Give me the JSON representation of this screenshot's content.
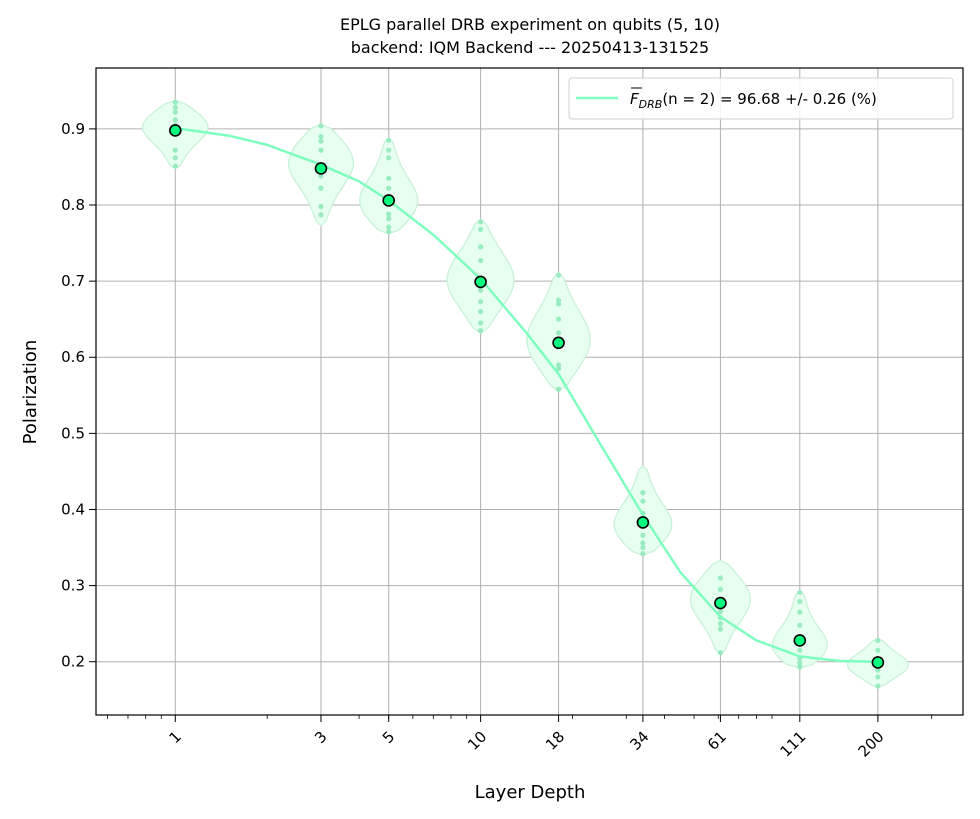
{
  "chart_data": {
    "type": "scatter",
    "title": "EPLG parallel DRB experiment on qubits (5, 10)",
    "subtitle": "backend: IQM Backend --- 20250413-131525",
    "xlabel": "Layer Depth",
    "ylabel": "Polarization",
    "x_scale": "log",
    "xlim": [
      0.55,
      380
    ],
    "ylim": [
      0.13,
      0.98
    ],
    "x_ticks": [
      1,
      3,
      5,
      10,
      18,
      34,
      61,
      111,
      200
    ],
    "x_tick_labels": [
      "1",
      "3",
      "5",
      "10",
      "18",
      "34",
      "61",
      "111",
      "200"
    ],
    "y_ticks": [
      0.2,
      0.3,
      0.4,
      0.5,
      0.6,
      0.7,
      0.8,
      0.9
    ],
    "y_tick_labels": [
      "0.2",
      "0.3",
      "0.4",
      "0.5",
      "0.6",
      "0.7",
      "0.8",
      "0.9"
    ],
    "grid": true,
    "legend_position": "top-right",
    "legend_label_prefix": "F",
    "legend_label_sub": "DRB",
    "legend_label_arg": "(n = 2) = 96.68 +/- 0.26 (%)",
    "colors": {
      "fit_line": "#7fffbf",
      "violin_fill": "#e6fff0",
      "violin_edge": "#c9f2d9",
      "samples": "#8de8b8",
      "mean_fill": "#00ff7f",
      "mean_edge": "#000000",
      "grid": "#b0b0b0"
    },
    "series": [
      {
        "name": "mean",
        "x": [
          1,
          3,
          5,
          10,
          18,
          34,
          61,
          111,
          200
        ],
        "y": [
          0.898,
          0.848,
          0.806,
          0.699,
          0.619,
          0.383,
          0.277,
          0.228,
          0.199
        ]
      },
      {
        "name": "fit",
        "x": [
          1,
          1.5,
          2,
          3,
          4,
          5,
          7,
          10,
          14,
          18,
          25,
          34,
          45,
          61,
          80,
          111,
          150,
          200
        ],
        "y": [
          0.901,
          0.891,
          0.879,
          0.853,
          0.831,
          0.806,
          0.761,
          0.703,
          0.634,
          0.578,
          0.482,
          0.393,
          0.318,
          0.259,
          0.228,
          0.207,
          0.201,
          0.2
        ]
      }
    ],
    "violins": [
      {
        "x": 1,
        "min": 0.848,
        "max": 0.937,
        "peak": 0.905,
        "width": 0.22
      },
      {
        "x": 3,
        "min": 0.773,
        "max": 0.906,
        "peak": 0.86,
        "width": 0.22
      },
      {
        "x": 5,
        "min": 0.762,
        "max": 0.888,
        "peak": 0.8,
        "width": 0.2
      },
      {
        "x": 10,
        "min": 0.632,
        "max": 0.781,
        "peak": 0.7,
        "width": 0.22
      },
      {
        "x": 18,
        "min": 0.556,
        "max": 0.711,
        "peak": 0.62,
        "width": 0.21
      },
      {
        "x": 34,
        "min": 0.34,
        "max": 0.457,
        "peak": 0.375,
        "width": 0.2
      },
      {
        "x": 61,
        "min": 0.21,
        "max": 0.333,
        "peak": 0.285,
        "width": 0.2
      },
      {
        "x": 111,
        "min": 0.192,
        "max": 0.293,
        "peak": 0.215,
        "width": 0.2
      },
      {
        "x": 200,
        "min": 0.167,
        "max": 0.23,
        "peak": 0.195,
        "width": 0.2
      }
    ],
    "samples": [
      {
        "x": 1,
        "y": [
          0.851,
          0.862,
          0.872,
          0.896,
          0.905,
          0.912,
          0.922,
          0.928,
          0.935
        ]
      },
      {
        "x": 3,
        "y": [
          0.787,
          0.798,
          0.822,
          0.838,
          0.852,
          0.872,
          0.884,
          0.89,
          0.904
        ]
      },
      {
        "x": 5,
        "y": [
          0.765,
          0.771,
          0.782,
          0.788,
          0.807,
          0.822,
          0.835,
          0.862,
          0.872,
          0.885
        ]
      },
      {
        "x": 10,
        "y": [
          0.635,
          0.645,
          0.66,
          0.673,
          0.688,
          0.705,
          0.727,
          0.745,
          0.768,
          0.778
        ]
      },
      {
        "x": 18,
        "y": [
          0.558,
          0.585,
          0.59,
          0.615,
          0.632,
          0.65,
          0.67,
          0.675,
          0.708
        ]
      },
      {
        "x": 34,
        "y": [
          0.342,
          0.35,
          0.356,
          0.366,
          0.378,
          0.395,
          0.411,
          0.422
        ]
      },
      {
        "x": 61,
        "y": [
          0.212,
          0.243,
          0.25,
          0.258,
          0.266,
          0.276,
          0.295,
          0.31
        ]
      },
      {
        "x": 111,
        "y": [
          0.193,
          0.198,
          0.204,
          0.215,
          0.23,
          0.248,
          0.265,
          0.279,
          0.291
        ]
      },
      {
        "x": 200,
        "y": [
          0.168,
          0.18,
          0.189,
          0.2,
          0.215,
          0.228
        ]
      }
    ]
  }
}
